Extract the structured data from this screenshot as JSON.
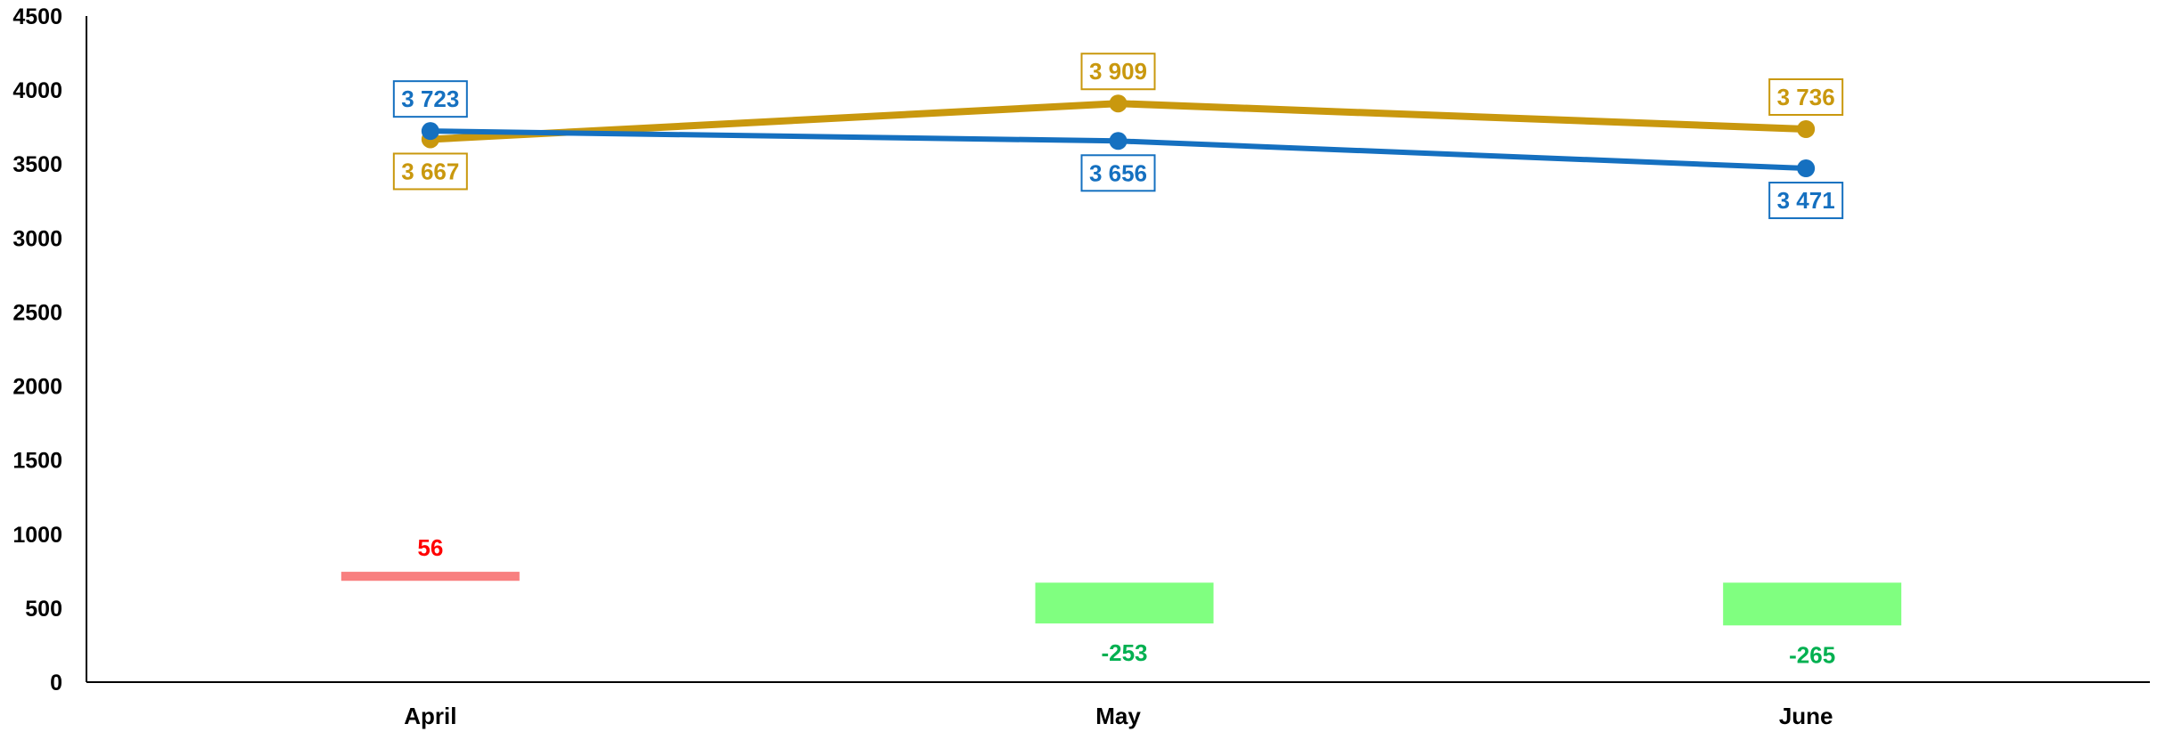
{
  "chart_data": {
    "type": "line",
    "categories": [
      "April",
      "May",
      "June"
    ],
    "ylim": [
      0,
      4500
    ],
    "yticks": [
      0,
      500,
      1000,
      1500,
      2000,
      2500,
      3000,
      3500,
      4000,
      4500
    ],
    "grid": false,
    "legend": "none",
    "series": [
      {
        "values": [
          3667,
          3909,
          3736
        ],
        "labels": [
          "3 667",
          "3 909",
          "3 736"
        ],
        "color": "#c9980e"
      },
      {
        "values": [
          3723,
          3656,
          3471
        ],
        "labels": [
          "3 723",
          "3 656",
          "3 471"
        ],
        "color": "#1570c0"
      }
    ],
    "difference": {
      "values": [
        56,
        -253,
        -265
      ],
      "labels": [
        "56",
        "-253",
        "-265"
      ],
      "positive_label_color": "#ff0000",
      "negative_label_color": "#00b050",
      "positive_bar_color": "#f88080",
      "negative_bar_color": "#80ff80"
    }
  }
}
